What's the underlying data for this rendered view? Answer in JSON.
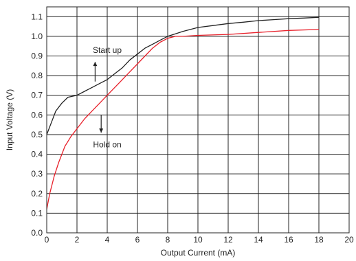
{
  "chart_data": {
    "type": "line",
    "xlabel": "Output Current (mA)",
    "ylabel": "Input Voltage (V)",
    "xlim": [
      0,
      20
    ],
    "ylim": [
      0,
      1.15
    ],
    "grid": true,
    "xticks": [
      "0",
      "2",
      "4",
      "6",
      "8",
      "10",
      "12",
      "14",
      "16",
      "18",
      "20"
    ],
    "yticks": [
      "0.0",
      "0.1",
      "0.2",
      "0.3",
      "0.4",
      "0.5",
      "0.6",
      "0.7",
      "0.8",
      "0.9",
      "1.0",
      "1.1"
    ],
    "series": [
      {
        "color": "#222222",
        "x": [
          0,
          0.3,
          0.6,
          1.0,
          1.4,
          2.0,
          2.5,
          3.0,
          3.5,
          4.0,
          4.5,
          5.0,
          5.5,
          6.0,
          6.5,
          7.0,
          7.5,
          8.0,
          9.0,
          10.0,
          11.0,
          12.0,
          13.0,
          14.0,
          15.0,
          16.0,
          17.0,
          18.0
        ],
        "y": [
          0.5,
          0.56,
          0.62,
          0.66,
          0.69,
          0.7,
          0.72,
          0.74,
          0.76,
          0.78,
          0.81,
          0.84,
          0.88,
          0.91,
          0.94,
          0.96,
          0.98,
          1.0,
          1.025,
          1.045,
          1.055,
          1.065,
          1.072,
          1.08,
          1.085,
          1.09,
          1.093,
          1.097
        ]
      },
      {
        "color": "#e8202a",
        "x": [
          0,
          0.2,
          0.5,
          0.8,
          1.2,
          1.6,
          2.0,
          2.5,
          3.0,
          3.5,
          4.0,
          4.5,
          5.0,
          5.5,
          6.0,
          6.5,
          7.0,
          7.5,
          8.0,
          8.5,
          9.0,
          10.0,
          12.0,
          14.0,
          16.0,
          18.0
        ],
        "y": [
          0.12,
          0.2,
          0.29,
          0.36,
          0.44,
          0.49,
          0.53,
          0.58,
          0.62,
          0.66,
          0.7,
          0.74,
          0.78,
          0.82,
          0.86,
          0.9,
          0.94,
          0.97,
          0.99,
          1.0,
          1.0,
          1.005,
          1.01,
          1.02,
          1.03,
          1.035
        ]
      }
    ],
    "annotations": [
      {
        "text": "Start up",
        "x": 4.0,
        "y": 0.93,
        "arrow": "up",
        "arrow_x": 3.2,
        "arrow_from": 0.77,
        "arrow_to": 0.87
      },
      {
        "text": "Hold on",
        "x": 4.0,
        "y": 0.45,
        "arrow": "down",
        "arrow_x": 3.6,
        "arrow_from": 0.6,
        "arrow_to": 0.51
      }
    ]
  }
}
